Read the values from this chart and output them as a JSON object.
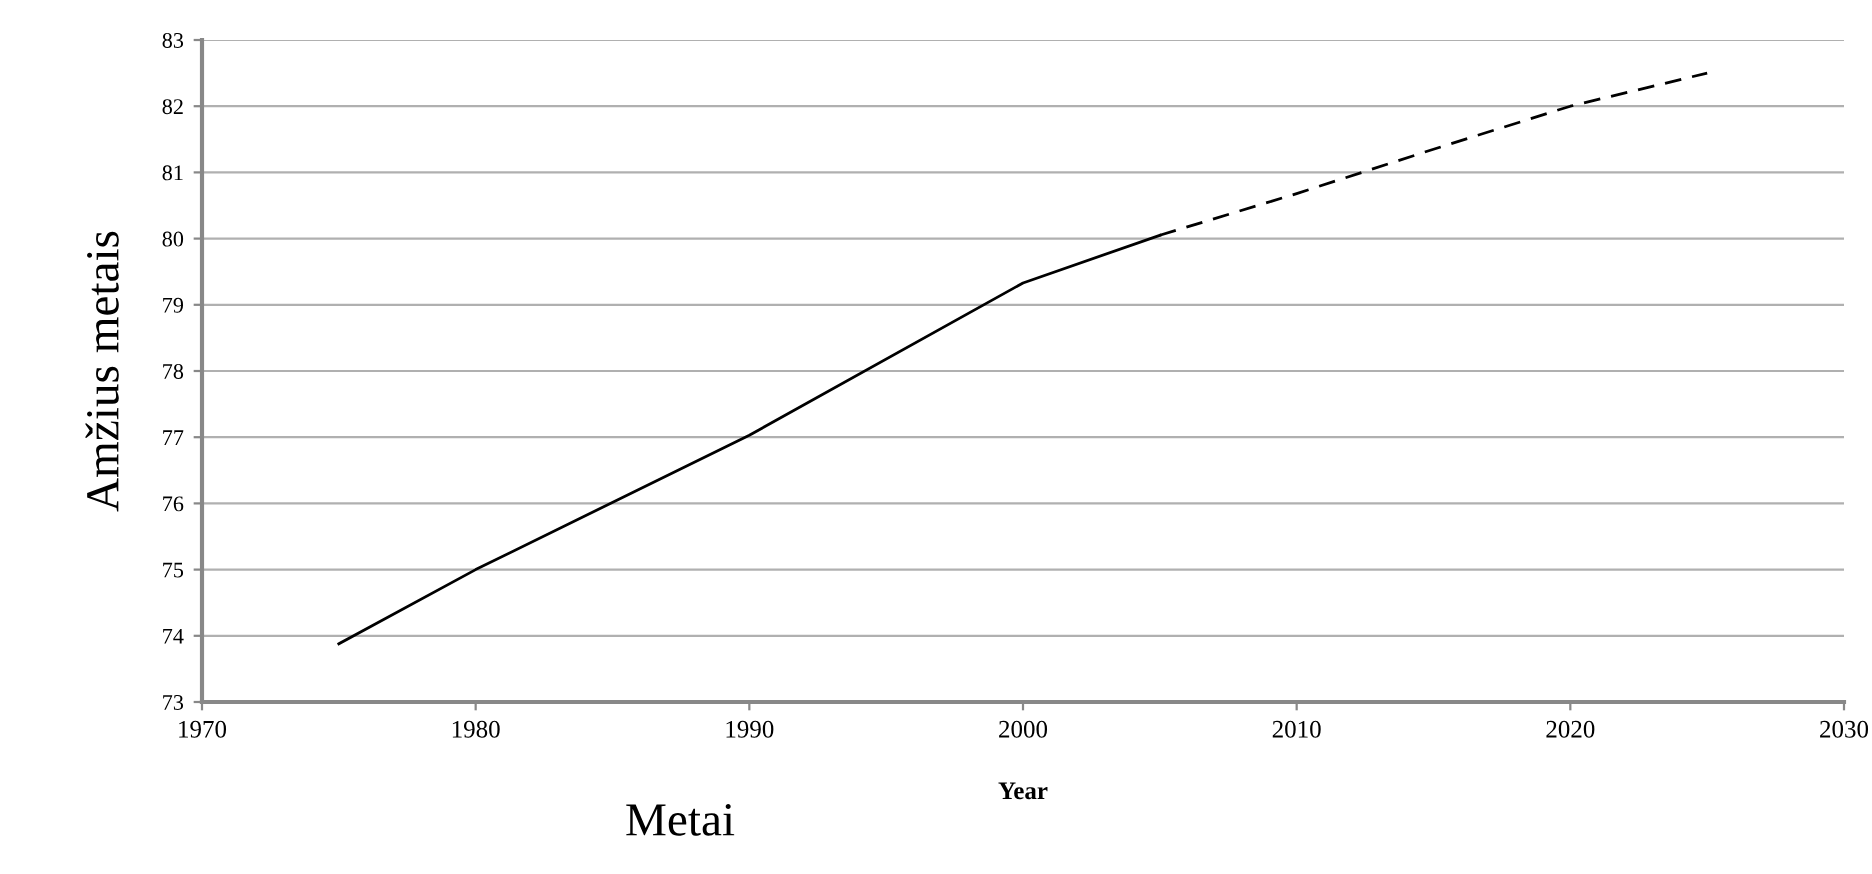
{
  "chart_data": {
    "type": "line",
    "xlabel": "Year",
    "ylabel": "Amžius metais",
    "annotations": [
      "Metai"
    ],
    "series": [
      {
        "color": "#000000",
        "line_style": "solid",
        "x": [
          1975,
          1980,
          1990,
          2000,
          2005
        ],
        "values": [
          73.88,
          75.0,
          77.03,
          79.33,
          80.05
        ]
      },
      {
        "color": "#000000",
        "line_style": "dashed",
        "x": [
          2005,
          2010,
          2015,
          2020,
          2025
        ],
        "values": [
          80.05,
          80.68,
          81.35,
          82.0,
          82.5
        ]
      }
    ],
    "xlim": [
      1970,
      2030
    ],
    "xticks": [
      1970,
      1980,
      1990,
      2000,
      2010,
      2020,
      2030
    ],
    "ylim": [
      73,
      83
    ],
    "yticks": [
      73,
      74,
      75,
      76,
      77,
      78,
      79,
      80,
      81,
      82,
      83
    ],
    "grid": "y",
    "marker": "none"
  }
}
